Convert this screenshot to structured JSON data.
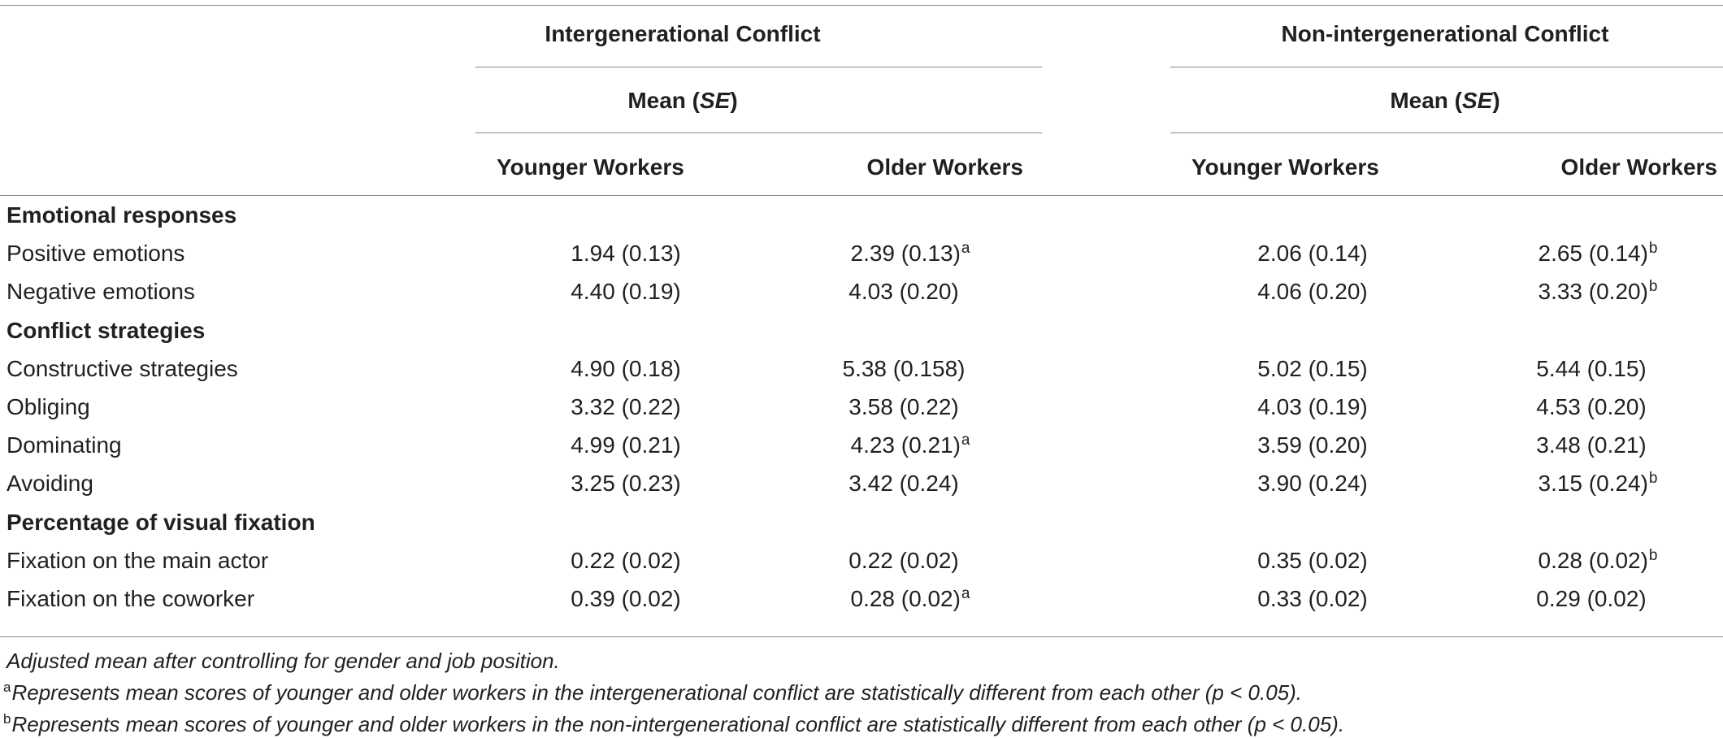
{
  "groups": [
    {
      "label": "Intergenerational Conflict",
      "subheader_pre": "Mean (",
      "subheader_em": "SE",
      "subheader_post": ")"
    },
    {
      "label": "Non-intergenerational Conflict",
      "subheader_pre": "Mean (",
      "subheader_em": "SE",
      "subheader_post": ")"
    }
  ],
  "columns": [
    "Younger Workers",
    "Older Workers",
    "Younger Workers",
    "Older Workers"
  ],
  "sections": [
    {
      "title": "Emotional responses",
      "rows": [
        {
          "label": "Positive emotions",
          "values": [
            "1.94 (0.13)",
            "2.39 (0.13)",
            "2.06 (0.14)",
            "2.65 (0.14)"
          ],
          "marks": [
            "",
            "a",
            "",
            "b"
          ]
        },
        {
          "label": "Negative emotions",
          "values": [
            "4.40 (0.19)",
            "4.03 (0.20)",
            "4.06 (0.20)",
            "3.33 (0.20)"
          ],
          "marks": [
            "",
            "",
            "",
            "b"
          ]
        }
      ]
    },
    {
      "title": "Conflict strategies",
      "rows": [
        {
          "label": "Constructive strategies",
          "values": [
            "4.90 (0.18)",
            "5.38 (0.158)",
            "5.02 (0.15)",
            "5.44 (0.15)"
          ],
          "marks": [
            "",
            "",
            "",
            ""
          ]
        },
        {
          "label": "Obliging",
          "values": [
            "3.32 (0.22)",
            "3.58 (0.22)",
            "4.03 (0.19)",
            "4.53 (0.20)"
          ],
          "marks": [
            "",
            "",
            "",
            ""
          ]
        },
        {
          "label": "Dominating",
          "values": [
            "4.99 (0.21)",
            "4.23 (0.21)",
            "3.59 (0.20)",
            "3.48 (0.21)"
          ],
          "marks": [
            "",
            "a",
            "",
            ""
          ]
        },
        {
          "label": "Avoiding",
          "values": [
            "3.25 (0.23)",
            "3.42 (0.24)",
            "3.90 (0.24)",
            "3.15 (0.24)"
          ],
          "marks": [
            "",
            "",
            "",
            "b"
          ]
        }
      ]
    },
    {
      "title": "Percentage of visual fixation",
      "rows": [
        {
          "label": "Fixation on the main actor",
          "values": [
            "0.22 (0.02)",
            "0.22 (0.02)",
            "0.35 (0.02)",
            "0.28 (0.02)"
          ],
          "marks": [
            "",
            "",
            "",
            "b"
          ]
        },
        {
          "label": "Fixation on the coworker",
          "values": [
            "0.39 (0.02)",
            "0.28 (0.02)",
            "0.33 (0.02)",
            "0.29 (0.02)"
          ],
          "marks": [
            "",
            "a",
            "",
            ""
          ]
        }
      ]
    }
  ],
  "footnotes": [
    {
      "mark": "",
      "text": "Adjusted mean after controlling for gender and job position."
    },
    {
      "mark": "a",
      "text": "Represents mean scores of younger and older workers in the intergenerational conflict are statistically different from each other (p < 0.05)."
    },
    {
      "mark": "b",
      "text": "Represents mean scores of younger and older workers in the non-intergenerational conflict are statistically different from each other (p < 0.05)."
    }
  ]
}
